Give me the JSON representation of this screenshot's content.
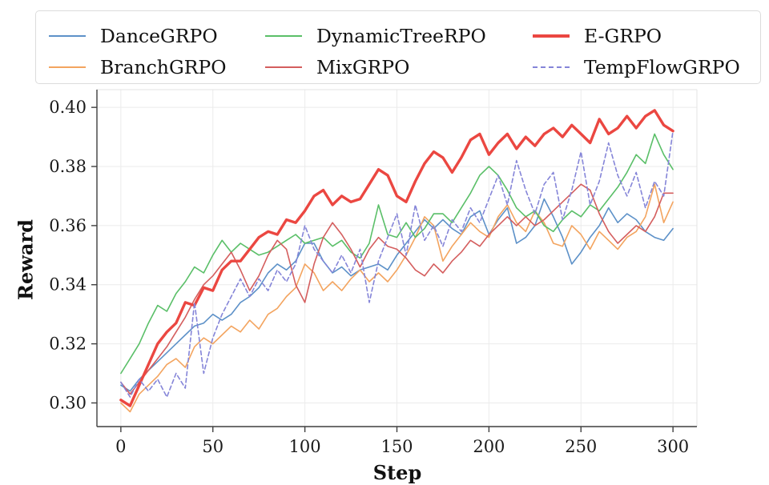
{
  "figure": {
    "background": "#ffffff",
    "axis_color": "#3f3f3f",
    "grid_color": "#ebebeb",
    "legend_border_color": "#dcdcdc"
  },
  "chart_data": {
    "type": "line",
    "title": "",
    "xlabel": "Step",
    "ylabel": "Reward",
    "xlim": [
      -13,
      313
    ],
    "ylim": [
      0.292,
      0.406
    ],
    "x_ticks": [
      0,
      50,
      100,
      150,
      200,
      250,
      300
    ],
    "x_tick_labels": [
      "0",
      "50",
      "100",
      "150",
      "200",
      "250",
      "300"
    ],
    "y_ticks": [
      0.3,
      0.32,
      0.34,
      0.36,
      0.38,
      0.4
    ],
    "y_tick_labels": [
      "0.30",
      "0.32",
      "0.34",
      "0.36",
      "0.38",
      "0.40"
    ],
    "grid": true,
    "legend_position": "top",
    "legend_columns": 3,
    "step_interval": 5,
    "steps": [
      0,
      5,
      10,
      15,
      20,
      25,
      30,
      35,
      40,
      45,
      50,
      55,
      60,
      65,
      70,
      75,
      80,
      85,
      90,
      95,
      100,
      105,
      110,
      115,
      120,
      125,
      130,
      135,
      140,
      145,
      150,
      155,
      160,
      165,
      170,
      175,
      180,
      185,
      190,
      195,
      200,
      205,
      210,
      215,
      220,
      225,
      230,
      235,
      240,
      245,
      250,
      255,
      260,
      265,
      270,
      275,
      280,
      285,
      290,
      295,
      300
    ],
    "series": [
      {
        "name": "DanceGRPO",
        "color": "#5d91c8",
        "style": "solid",
        "width": 1.6,
        "values": [
          0.306,
          0.304,
          0.308,
          0.311,
          0.314,
          0.317,
          0.32,
          0.323,
          0.326,
          0.327,
          0.33,
          0.328,
          0.33,
          0.334,
          0.336,
          0.339,
          0.344,
          0.347,
          0.345,
          0.348,
          0.354,
          0.354,
          0.348,
          0.344,
          0.346,
          0.343,
          0.345,
          0.346,
          0.347,
          0.345,
          0.35,
          0.354,
          0.358,
          0.362,
          0.359,
          0.362,
          0.359,
          0.357,
          0.363,
          0.365,
          0.357,
          0.362,
          0.366,
          0.354,
          0.356,
          0.36,
          0.369,
          0.363,
          0.356,
          0.347,
          0.351,
          0.356,
          0.36,
          0.366,
          0.361,
          0.364,
          0.362,
          0.358,
          0.356,
          0.355,
          0.359
        ]
      },
      {
        "name": "BranchGRPO",
        "color": "#f3a45f",
        "style": "solid",
        "width": 1.6,
        "values": [
          0.3,
          0.297,
          0.303,
          0.306,
          0.309,
          0.313,
          0.315,
          0.312,
          0.319,
          0.322,
          0.32,
          0.323,
          0.326,
          0.324,
          0.328,
          0.325,
          0.33,
          0.332,
          0.336,
          0.339,
          0.347,
          0.344,
          0.338,
          0.341,
          0.338,
          0.342,
          0.345,
          0.341,
          0.344,
          0.341,
          0.345,
          0.35,
          0.356,
          0.363,
          0.36,
          0.348,
          0.353,
          0.357,
          0.361,
          0.358,
          0.356,
          0.363,
          0.367,
          0.361,
          0.358,
          0.365,
          0.361,
          0.354,
          0.353,
          0.36,
          0.357,
          0.352,
          0.358,
          0.355,
          0.352,
          0.356,
          0.358,
          0.363,
          0.374,
          0.361,
          0.368
        ]
      },
      {
        "name": "DynamicTreeRPO",
        "color": "#5abf68",
        "style": "solid",
        "width": 1.6,
        "values": [
          0.31,
          0.315,
          0.32,
          0.327,
          0.333,
          0.331,
          0.337,
          0.341,
          0.346,
          0.344,
          0.35,
          0.355,
          0.351,
          0.354,
          0.352,
          0.35,
          0.351,
          0.353,
          0.355,
          0.357,
          0.354,
          0.355,
          0.356,
          0.353,
          0.355,
          0.351,
          0.349,
          0.354,
          0.367,
          0.357,
          0.356,
          0.361,
          0.356,
          0.359,
          0.364,
          0.364,
          0.361,
          0.366,
          0.371,
          0.377,
          0.38,
          0.377,
          0.372,
          0.366,
          0.363,
          0.365,
          0.36,
          0.358,
          0.362,
          0.365,
          0.363,
          0.367,
          0.365,
          0.369,
          0.373,
          0.378,
          0.384,
          0.381,
          0.391,
          0.384,
          0.379
        ]
      },
      {
        "name": "MixGRPO",
        "color": "#d45e5e",
        "style": "solid",
        "width": 1.6,
        "values": [
          0.307,
          0.303,
          0.307,
          0.311,
          0.315,
          0.319,
          0.324,
          0.329,
          0.335,
          0.34,
          0.343,
          0.347,
          0.351,
          0.345,
          0.338,
          0.343,
          0.35,
          0.355,
          0.352,
          0.34,
          0.334,
          0.347,
          0.356,
          0.361,
          0.357,
          0.352,
          0.346,
          0.352,
          0.356,
          0.353,
          0.352,
          0.349,
          0.345,
          0.343,
          0.347,
          0.344,
          0.348,
          0.351,
          0.355,
          0.353,
          0.357,
          0.36,
          0.363,
          0.36,
          0.363,
          0.36,
          0.362,
          0.365,
          0.368,
          0.371,
          0.374,
          0.372,
          0.364,
          0.358,
          0.354,
          0.357,
          0.36,
          0.358,
          0.363,
          0.371,
          0.371
        ]
      },
      {
        "name": "E-GRPO",
        "color": "#eb4741",
        "style": "solid",
        "width": 3.4,
        "values": [
          0.301,
          0.299,
          0.306,
          0.313,
          0.32,
          0.324,
          0.327,
          0.334,
          0.333,
          0.339,
          0.338,
          0.345,
          0.348,
          0.348,
          0.352,
          0.356,
          0.358,
          0.357,
          0.362,
          0.361,
          0.365,
          0.37,
          0.372,
          0.367,
          0.37,
          0.368,
          0.369,
          0.374,
          0.379,
          0.377,
          0.37,
          0.368,
          0.375,
          0.381,
          0.385,
          0.383,
          0.378,
          0.383,
          0.389,
          0.391,
          0.384,
          0.388,
          0.391,
          0.386,
          0.39,
          0.387,
          0.391,
          0.393,
          0.39,
          0.394,
          0.391,
          0.388,
          0.396,
          0.391,
          0.393,
          0.397,
          0.393,
          0.397,
          0.399,
          0.394,
          0.392
        ]
      },
      {
        "name": "TempFlowGRPO",
        "color": "#8585d8",
        "style": "dashed",
        "width": 1.6,
        "values": [
          0.307,
          0.302,
          0.308,
          0.304,
          0.308,
          0.302,
          0.31,
          0.305,
          0.334,
          0.31,
          0.322,
          0.33,
          0.336,
          0.342,
          0.336,
          0.342,
          0.338,
          0.345,
          0.341,
          0.347,
          0.36,
          0.352,
          0.348,
          0.344,
          0.35,
          0.344,
          0.352,
          0.334,
          0.348,
          0.356,
          0.364,
          0.35,
          0.367,
          0.355,
          0.36,
          0.353,
          0.362,
          0.358,
          0.366,
          0.361,
          0.369,
          0.377,
          0.367,
          0.382,
          0.372,
          0.364,
          0.374,
          0.378,
          0.362,
          0.372,
          0.385,
          0.367,
          0.375,
          0.388,
          0.377,
          0.37,
          0.378,
          0.366,
          0.375,
          0.37,
          0.392
        ]
      }
    ]
  }
}
